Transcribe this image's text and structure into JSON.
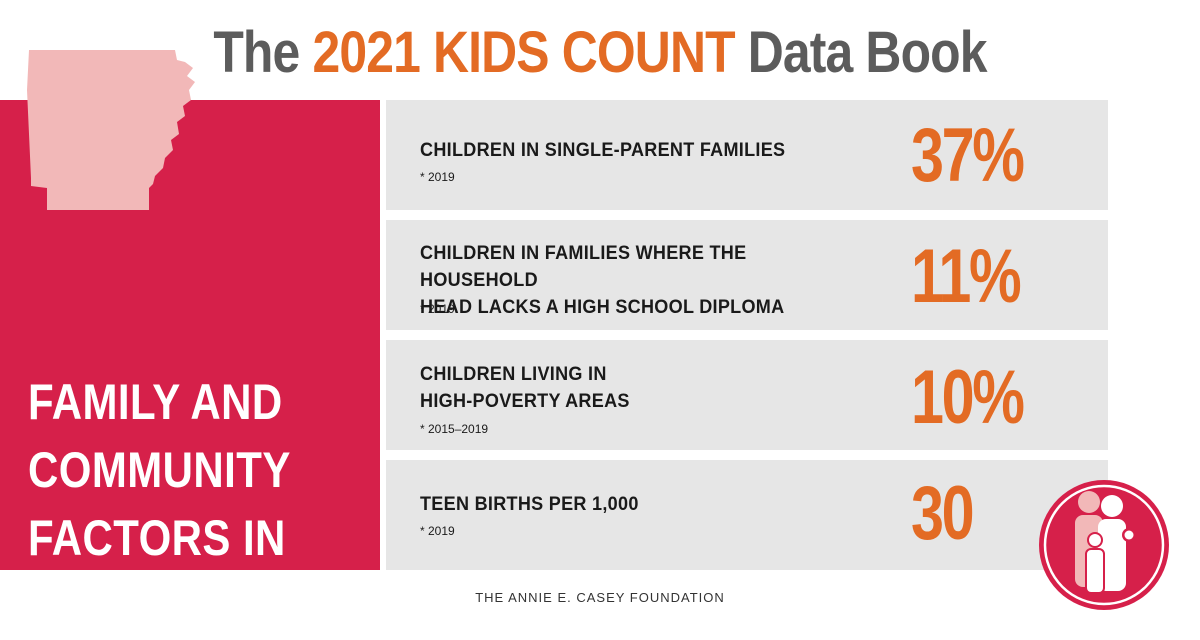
{
  "header": {
    "title_prefix": "The",
    "title_accent": "2021 KIDS COUNT",
    "title_suffix": "Data Book"
  },
  "panel": {
    "heading": "FAMILY AND\nCOMMUNITY\nFACTORS IN\nARKANSAS",
    "map_icon": "arkansas-state-outline-icon"
  },
  "indicators": [
    {
      "label": "CHILDREN IN SINGLE-PARENT FAMILIES",
      "note": "* 2019",
      "value": "37%"
    },
    {
      "label": "CHILDREN IN FAMILIES WHERE THE HOUSEHOLD\nHEAD LACKS A HIGH SCHOOL DIPLOMA",
      "note": "* 2019",
      "value": "11%"
    },
    {
      "label": "CHILDREN LIVING IN\nHIGH-POVERTY AREAS",
      "note": "* 2015–2019",
      "value": "10%"
    },
    {
      "label": "TEEN BIRTHS PER 1,000",
      "note": "* 2019",
      "value": "30"
    }
  ],
  "footer": {
    "text": "THE ANNIE E. CASEY FOUNDATION"
  },
  "badge_icon": "family-icon",
  "colors": {
    "red": "#d6204a",
    "orange": "#e36b24",
    "gray_text": "#5c5c5c",
    "row_bg": "#e6e6e6",
    "map_pink": "#f2b8b8"
  }
}
